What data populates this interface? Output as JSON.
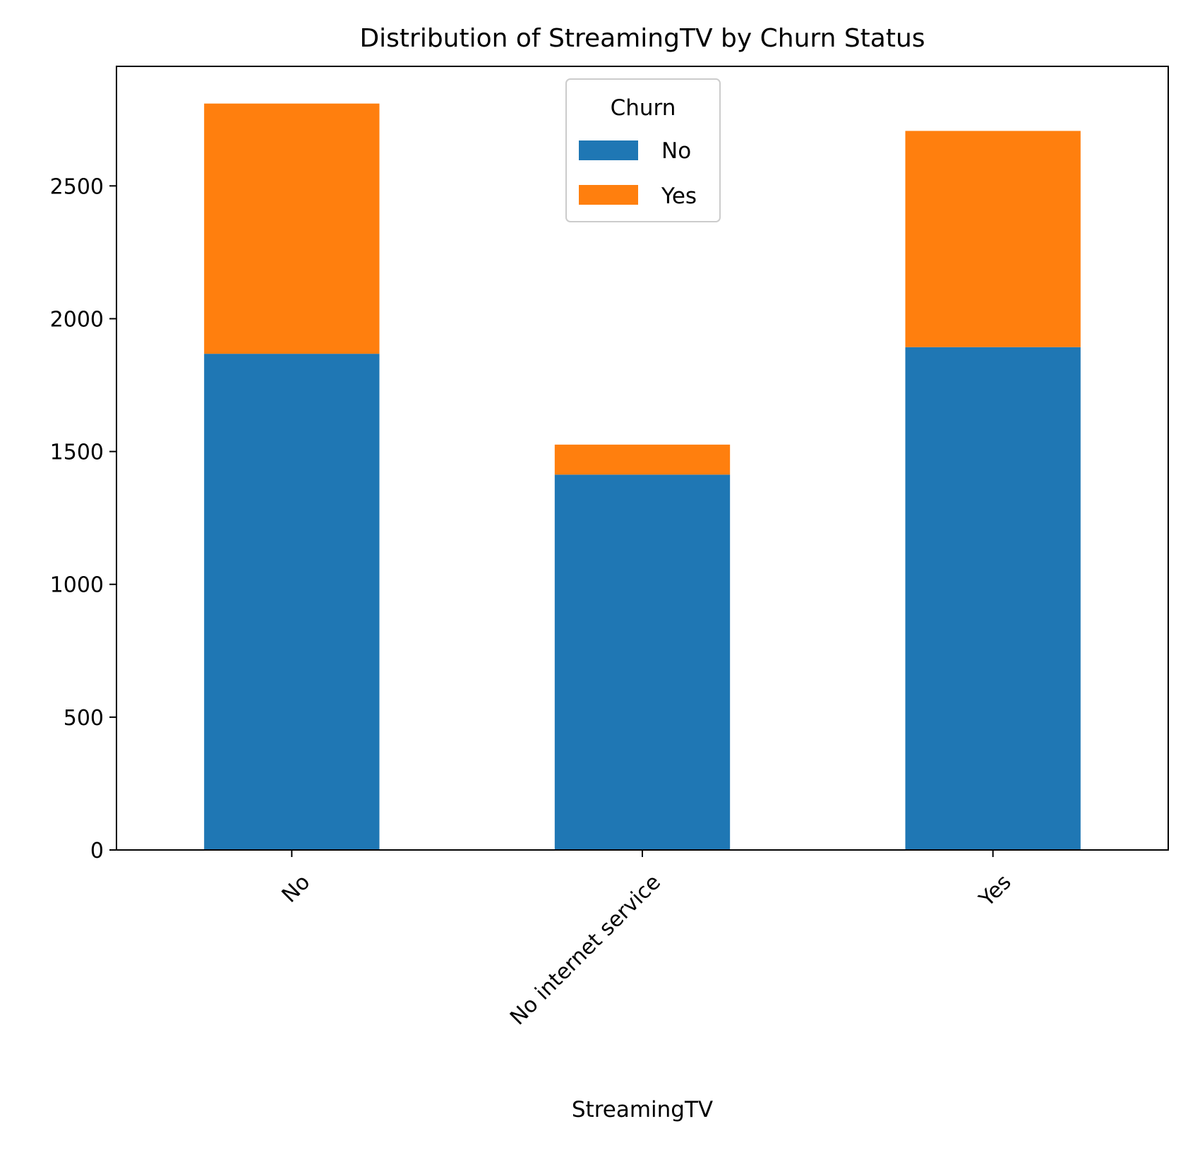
{
  "chart_data": {
    "type": "bar",
    "stacked": true,
    "title": "Distribution of StreamingTV by Churn Status",
    "xlabel": "StreamingTV",
    "ylabel": "",
    "categories": [
      "No",
      "No internet service",
      "Yes"
    ],
    "series": [
      {
        "name": "No",
        "color": "#1f77b4",
        "values": [
          1868,
          1413,
          1893
        ]
      },
      {
        "name": "Yes",
        "color": "#ff7f0e",
        "values": [
          942,
          113,
          814
        ]
      }
    ],
    "ylim": [
      0,
      2950
    ],
    "yticks": [
      0,
      500,
      1000,
      1500,
      2000,
      2500
    ],
    "legend": {
      "title": "Churn",
      "placement": "upper center"
    },
    "grid": false
  }
}
